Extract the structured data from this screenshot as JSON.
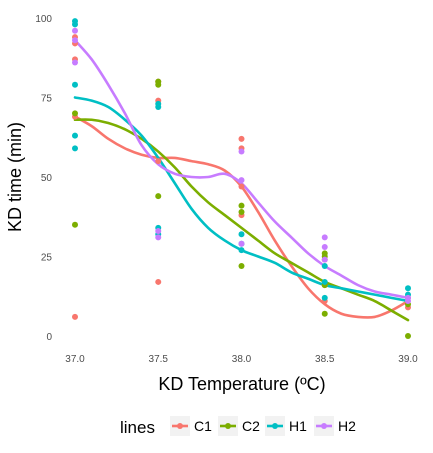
{
  "chart_data": {
    "type": "scatter",
    "xlabel": "KD Temperature (ºC)",
    "ylabel": "KD time (min)",
    "xlim": [
      37.0,
      39.0
    ],
    "ylim": [
      0,
      100
    ],
    "xticks": [
      37.0,
      37.5,
      38.0,
      38.5,
      39.0
    ],
    "xtick_labels": [
      "37.0",
      "37.5",
      "38.0",
      "38.5",
      "39.0"
    ],
    "yticks": [
      0,
      25,
      50,
      75,
      100
    ],
    "ytick_labels": [
      "0",
      "25",
      "50",
      "75",
      "100"
    ],
    "grid": false,
    "smooth_lines": true,
    "legend": {
      "title": "lines",
      "position": "bottom"
    },
    "series": [
      {
        "name": "C1",
        "color": "#F8766D",
        "x": [
          37.0,
          37.0,
          37.0,
          37.0,
          37.0,
          37.5,
          37.5,
          37.5,
          37.5,
          38.0,
          38.0,
          38.0,
          38.0,
          38.5,
          38.5,
          38.5,
          39.0,
          39.0
        ],
        "y": [
          6,
          69,
          87,
          92,
          94,
          17,
          55,
          74,
          80,
          38,
          47,
          59,
          62,
          11,
          16,
          24,
          9,
          12
        ],
        "curve": [
          [
            37.0,
            69
          ],
          [
            37.1,
            66
          ],
          [
            37.2,
            62
          ],
          [
            37.3,
            59
          ],
          [
            37.4,
            57
          ],
          [
            37.5,
            56
          ],
          [
            37.6,
            56
          ],
          [
            37.7,
            55
          ],
          [
            37.8,
            54
          ],
          [
            37.9,
            52
          ],
          [
            38.0,
            47
          ],
          [
            38.1,
            39
          ],
          [
            38.2,
            30
          ],
          [
            38.3,
            22
          ],
          [
            38.4,
            15
          ],
          [
            38.5,
            10
          ],
          [
            38.6,
            7
          ],
          [
            38.7,
            6
          ],
          [
            38.8,
            6
          ],
          [
            38.9,
            8
          ],
          [
            39.0,
            11
          ]
        ]
      },
      {
        "name": "C2",
        "color": "#7CAE00",
        "x": [
          37.0,
          37.0,
          37.5,
          37.5,
          37.5,
          38.0,
          38.0,
          38.0,
          38.5,
          38.5,
          38.5,
          38.5,
          39.0,
          39.0
        ],
        "y": [
          35,
          70,
          44,
          79,
          80,
          22,
          39,
          41,
          7,
          16,
          25,
          26,
          0,
          10
        ],
        "curve": [
          [
            37.0,
            68
          ],
          [
            37.1,
            68
          ],
          [
            37.2,
            67
          ],
          [
            37.3,
            65
          ],
          [
            37.4,
            62
          ],
          [
            37.5,
            58
          ],
          [
            37.6,
            53
          ],
          [
            37.7,
            47
          ],
          [
            37.8,
            42
          ],
          [
            37.9,
            38
          ],
          [
            38.0,
            34
          ],
          [
            38.1,
            30
          ],
          [
            38.2,
            26
          ],
          [
            38.3,
            23
          ],
          [
            38.4,
            20
          ],
          [
            38.5,
            17
          ],
          [
            38.6,
            15
          ],
          [
            38.7,
            13
          ],
          [
            38.8,
            11
          ],
          [
            38.9,
            8
          ],
          [
            39.0,
            5
          ]
        ]
      },
      {
        "name": "H1",
        "color": "#00BFC4",
        "x": [
          37.0,
          37.0,
          37.0,
          37.0,
          37.0,
          37.5,
          37.5,
          37.5,
          37.5,
          38.0,
          38.0,
          38.0,
          38.5,
          38.5,
          38.5,
          39.0,
          39.0
        ],
        "y": [
          59,
          63,
          79,
          98,
          99,
          32,
          34,
          72,
          73,
          27,
          29,
          32,
          12,
          17,
          22,
          13,
          15
        ],
        "curve": [
          [
            37.0,
            75
          ],
          [
            37.1,
            74
          ],
          [
            37.2,
            72
          ],
          [
            37.3,
            68
          ],
          [
            37.4,
            63
          ],
          [
            37.5,
            56
          ],
          [
            37.6,
            48
          ],
          [
            37.7,
            40
          ],
          [
            37.8,
            34
          ],
          [
            37.9,
            30
          ],
          [
            38.0,
            27
          ],
          [
            38.1,
            25
          ],
          [
            38.2,
            23
          ],
          [
            38.3,
            20
          ],
          [
            38.4,
            18
          ],
          [
            38.5,
            16
          ],
          [
            38.6,
            15
          ],
          [
            38.7,
            14
          ],
          [
            38.8,
            13
          ],
          [
            38.9,
            12
          ],
          [
            39.0,
            11
          ]
        ]
      },
      {
        "name": "H2",
        "color": "#C77CFF",
        "x": [
          37.0,
          37.0,
          37.0,
          37.5,
          37.5,
          38.0,
          38.0,
          38.0,
          38.5,
          38.5,
          38.5,
          39.0,
          39.0
        ],
        "y": [
          86,
          93,
          96,
          31,
          33,
          29,
          49,
          58,
          24,
          28,
          31,
          11,
          12
        ],
        "curve": [
          [
            37.0,
            93
          ],
          [
            37.1,
            87
          ],
          [
            37.2,
            79
          ],
          [
            37.3,
            70
          ],
          [
            37.4,
            60
          ],
          [
            37.5,
            54
          ],
          [
            37.6,
            51
          ],
          [
            37.7,
            50
          ],
          [
            37.8,
            50
          ],
          [
            37.9,
            51
          ],
          [
            38.0,
            48
          ],
          [
            38.1,
            42
          ],
          [
            38.2,
            36
          ],
          [
            38.3,
            31
          ],
          [
            38.4,
            26
          ],
          [
            38.5,
            22
          ],
          [
            38.6,
            19
          ],
          [
            38.7,
            16
          ],
          [
            38.8,
            14
          ],
          [
            38.9,
            13
          ],
          [
            39.0,
            12
          ]
        ]
      }
    ]
  }
}
